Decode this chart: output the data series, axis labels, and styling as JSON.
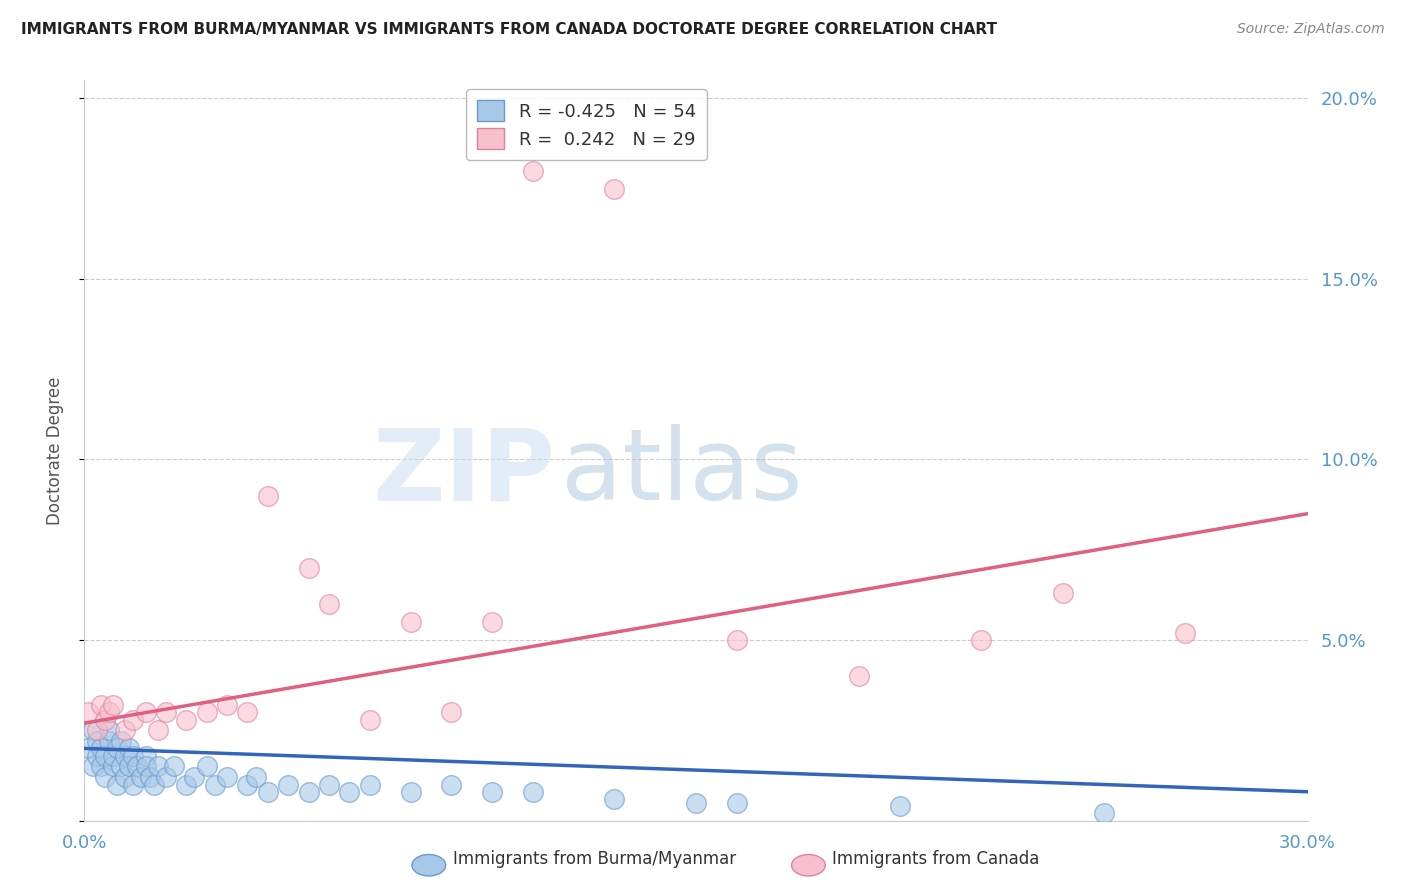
{
  "title": "IMMIGRANTS FROM BURMA/MYANMAR VS IMMIGRANTS FROM CANADA DOCTORATE DEGREE CORRELATION CHART",
  "source": "Source: ZipAtlas.com",
  "ylabel": "Doctorate Degree",
  "watermark_zip": "ZIP",
  "watermark_atlas": "atlas",
  "background_color": "#ffffff",
  "blue_color": "#a8c8e8",
  "blue_edge_color": "#6699cc",
  "blue_line_color": "#3366bb",
  "pink_color": "#f8c0cc",
  "pink_edge_color": "#e080a0",
  "pink_line_color": "#e06080",
  "right_axis_color": "#5599cc",
  "legend_r_blue": "-0.425",
  "legend_n_blue": "54",
  "legend_r_pink": "0.242",
  "legend_n_pink": "29",
  "xlim": [
    0.0,
    0.3
  ],
  "ylim": [
    0.0,
    0.205
  ],
  "yticks": [
    0.0,
    0.05,
    0.1,
    0.15,
    0.2
  ],
  "ytick_labels": [
    "",
    "5.0%",
    "10.0%",
    "15.0%",
    "20.0%"
  ],
  "xticks": [
    0.0,
    0.1,
    0.2,
    0.3
  ],
  "xtick_labels": [
    "0.0%",
    "",
    "",
    "30.0%"
  ],
  "blue_x": [
    0.001,
    0.002,
    0.002,
    0.003,
    0.003,
    0.004,
    0.004,
    0.005,
    0.005,
    0.006,
    0.006,
    0.007,
    0.007,
    0.008,
    0.008,
    0.009,
    0.009,
    0.01,
    0.01,
    0.011,
    0.011,
    0.012,
    0.012,
    0.013,
    0.014,
    0.015,
    0.015,
    0.016,
    0.017,
    0.018,
    0.02,
    0.022,
    0.025,
    0.027,
    0.03,
    0.032,
    0.035,
    0.04,
    0.042,
    0.045,
    0.05,
    0.055,
    0.06,
    0.065,
    0.07,
    0.08,
    0.09,
    0.1,
    0.11,
    0.13,
    0.15,
    0.16,
    0.2,
    0.25
  ],
  "blue_y": [
    0.02,
    0.025,
    0.015,
    0.022,
    0.018,
    0.02,
    0.015,
    0.018,
    0.012,
    0.022,
    0.025,
    0.015,
    0.018,
    0.02,
    0.01,
    0.015,
    0.022,
    0.018,
    0.012,
    0.02,
    0.015,
    0.018,
    0.01,
    0.015,
    0.012,
    0.018,
    0.015,
    0.012,
    0.01,
    0.015,
    0.012,
    0.015,
    0.01,
    0.012,
    0.015,
    0.01,
    0.012,
    0.01,
    0.012,
    0.008,
    0.01,
    0.008,
    0.01,
    0.008,
    0.01,
    0.008,
    0.01,
    0.008,
    0.008,
    0.006,
    0.005,
    0.005,
    0.004,
    0.002
  ],
  "pink_x": [
    0.001,
    0.003,
    0.004,
    0.005,
    0.006,
    0.007,
    0.01,
    0.012,
    0.015,
    0.018,
    0.02,
    0.025,
    0.03,
    0.035,
    0.04,
    0.045,
    0.055,
    0.06,
    0.07,
    0.08,
    0.09,
    0.1,
    0.11,
    0.13,
    0.16,
    0.19,
    0.22,
    0.24,
    0.27
  ],
  "pink_y": [
    0.03,
    0.025,
    0.032,
    0.028,
    0.03,
    0.032,
    0.025,
    0.028,
    0.03,
    0.025,
    0.03,
    0.028,
    0.03,
    0.032,
    0.03,
    0.09,
    0.07,
    0.06,
    0.028,
    0.055,
    0.03,
    0.055,
    0.18,
    0.175,
    0.05,
    0.04,
    0.05,
    0.063,
    0.052
  ],
  "blue_trend_x": [
    0.0,
    0.3
  ],
  "blue_trend_y": [
    0.02,
    0.008
  ],
  "pink_trend_x": [
    0.0,
    0.3
  ],
  "pink_trend_y": [
    0.027,
    0.085
  ]
}
